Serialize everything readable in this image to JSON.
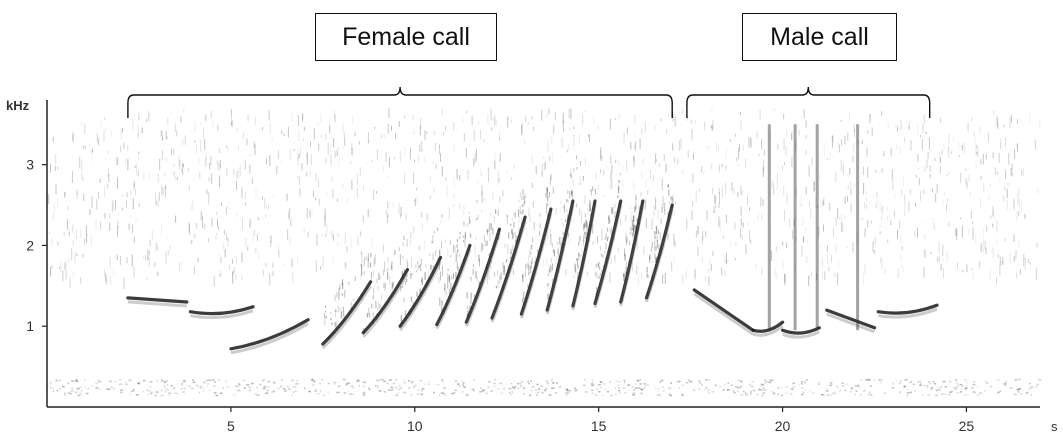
{
  "annotations": {
    "female_label": "Female call",
    "male_label": "Male call"
  },
  "chart_data": {
    "type": "heatmap",
    "title": "",
    "ylabel": "kHz",
    "xlabel": "s",
    "xlim": [
      0,
      27
    ],
    "ylim": [
      0,
      3.8
    ],
    "x_ticks": [
      5,
      10,
      15,
      20,
      25
    ],
    "y_ticks": [
      1,
      2,
      3
    ],
    "grid": false,
    "brackets": [
      {
        "label": "Female call",
        "x_start": 2.2,
        "x_end": 17.0
      },
      {
        "label": "Male call",
        "x_start": 17.4,
        "x_end": 24.0
      }
    ],
    "female_notes": [
      {
        "t0": 2.2,
        "t1": 3.8,
        "f0": 1.35,
        "f1": 1.3
      },
      {
        "t0": 3.9,
        "t1": 5.6,
        "f0": 1.18,
        "f1": 1.24
      },
      {
        "t0": 5.0,
        "t1": 7.1,
        "f0": 0.72,
        "f1": 1.08
      },
      {
        "t0": 7.5,
        "t1": 8.8,
        "f0": 0.78,
        "f1": 1.55
      },
      {
        "t0": 8.6,
        "t1": 9.8,
        "f0": 0.92,
        "f1": 1.7
      },
      {
        "t0": 9.6,
        "t1": 10.7,
        "f0": 1.0,
        "f1": 1.85
      },
      {
        "t0": 10.6,
        "t1": 11.5,
        "f0": 1.02,
        "f1": 2.0
      },
      {
        "t0": 11.4,
        "t1": 12.3,
        "f0": 1.05,
        "f1": 2.2
      },
      {
        "t0": 12.1,
        "t1": 13.0,
        "f0": 1.1,
        "f1": 2.35
      },
      {
        "t0": 12.9,
        "t1": 13.7,
        "f0": 1.15,
        "f1": 2.45
      },
      {
        "t0": 13.6,
        "t1": 14.3,
        "f0": 1.2,
        "f1": 2.55
      },
      {
        "t0": 14.3,
        "t1": 14.9,
        "f0": 1.25,
        "f1": 2.55
      },
      {
        "t0": 14.9,
        "t1": 15.6,
        "f0": 1.28,
        "f1": 2.55
      },
      {
        "t0": 15.6,
        "t1": 16.2,
        "f0": 1.3,
        "f1": 2.55
      },
      {
        "t0": 16.3,
        "t1": 17.0,
        "f0": 1.35,
        "f1": 2.5
      }
    ],
    "male_notes": [
      {
        "t0": 17.6,
        "t1": 19.2,
        "f0": 1.45,
        "f1": 0.95
      },
      {
        "t0": 19.2,
        "t1": 20.0,
        "f0": 0.95,
        "f1": 1.05
      },
      {
        "t0": 20.0,
        "t1": 21.0,
        "f0": 0.95,
        "f1": 0.98
      },
      {
        "t0": 21.2,
        "t1": 22.5,
        "f0": 1.2,
        "f1": 0.98
      },
      {
        "t0": 22.6,
        "t1": 24.2,
        "f0": 1.18,
        "f1": 1.26
      }
    ]
  }
}
